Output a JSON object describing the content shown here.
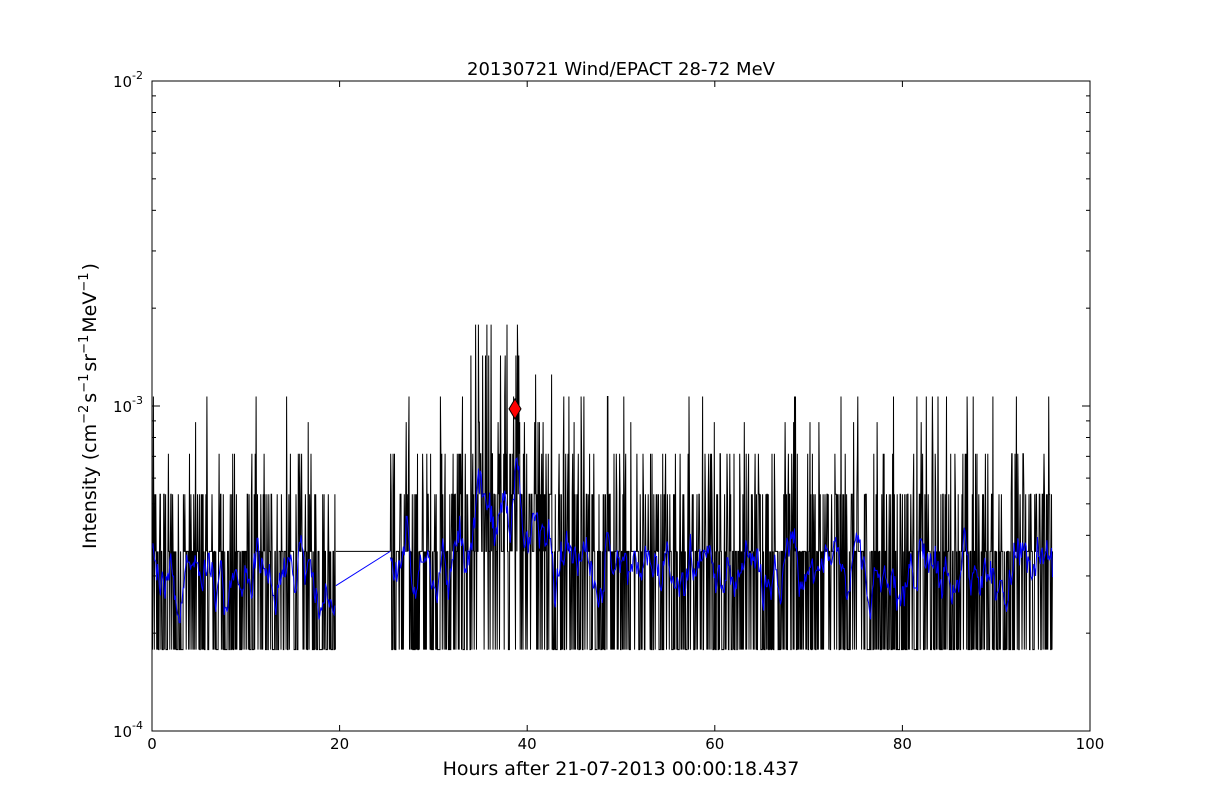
{
  "chart_data": {
    "type": "line",
    "title": "20130721 Wind/EPACT 28-72 MeV",
    "xlabel": "Hours after 21-07-2013 00:00:18.437",
    "ylabel_parts": {
      "pre": "Intensity (cm",
      "e1": "−2",
      "s": "s",
      "e2": "−1",
      "sr": "sr",
      "e3": "−1",
      "mev": "MeV",
      "e4": "−1",
      "post": ")"
    },
    "xlim": [
      0,
      100
    ],
    "ylim": [
      0.0001,
      0.01
    ],
    "yscale": "log",
    "grid": false,
    "x_ticks": [
      0,
      20,
      40,
      60,
      80,
      100
    ],
    "x_tick_labels": [
      "0",
      "20",
      "40",
      "60",
      "80",
      "100"
    ],
    "y_ticks": [
      {
        "value": 0.01,
        "base": "10",
        "exp": "-2"
      },
      {
        "value": 0.001,
        "base": "10",
        "exp": "-3"
      },
      {
        "value": 0.0001,
        "base": "10",
        "exp": "-4"
      }
    ],
    "series": [
      {
        "role": "raw intensity",
        "color": "#000000",
        "levels": [
          0.000178,
          0.000357,
          0.000535,
          0.000713,
          0.000892,
          0.00107,
          0.00125,
          0.00143,
          0.00178
        ],
        "data_gap": [
          19.6,
          25.4
        ],
        "gap_fill_value": 0.000357,
        "x_range": [
          0,
          96
        ]
      },
      {
        "role": "smoothed intensity",
        "color": "#0000ff",
        "gap_line": {
          "x": [
            19.6,
            25.4
          ],
          "y": [
            0.00028,
            0.000357
          ]
        },
        "x_range": [
          0,
          96
        ]
      }
    ],
    "marker": {
      "shape": "diamond",
      "color": "#ff0000",
      "x": 38.7,
      "y": 0.00098
    }
  }
}
